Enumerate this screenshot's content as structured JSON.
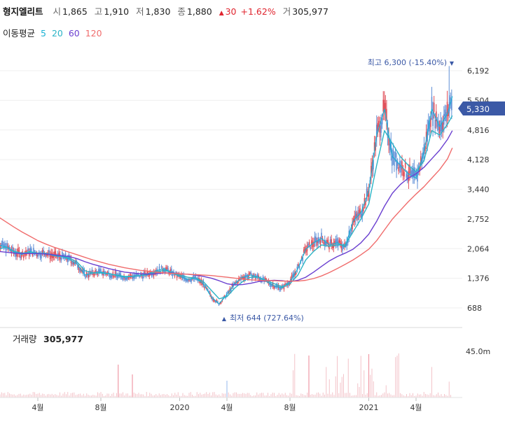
{
  "header": {
    "name": "형지엘리트",
    "open_label": "시",
    "open": "1,865",
    "high_label": "고",
    "high": "1,910",
    "low_label": "저",
    "low": "1,830",
    "close_label": "종",
    "close": "1,880",
    "change_arrow": "▲",
    "change": "30",
    "change_pct": "+1.62%",
    "volume_label": "거",
    "volume": "305,977"
  },
  "ma_legend": {
    "label": "이동평균",
    "items": [
      {
        "period": "5",
        "color": "#1ab2d4"
      },
      {
        "period": "20",
        "color": "#2bb4c6"
      },
      {
        "period": "60",
        "color": "#6a3fd0"
      },
      {
        "period": "120",
        "color": "#f06c6c"
      }
    ]
  },
  "price_chart": {
    "max_note": "최고 6,300 (-15.40%)",
    "max_marker": "▼",
    "min_note": "최저 644 (727.64%)",
    "min_marker": "▲",
    "current_price": "5,330",
    "current_price_color": "#3b59a6"
  },
  "volume_chart": {
    "label": "거래량",
    "value": "305,977",
    "axis_label": "45.0m"
  },
  "chart_data": {
    "type": "line",
    "ylabels": [
      "6,192",
      "5,504",
      "4,816",
      "4,128",
      "3,440",
      "2,752",
      "2,064",
      "1,376",
      "688"
    ],
    "yticks": [
      6192,
      5504,
      4816,
      4128,
      3440,
      2752,
      2064,
      1376,
      688
    ],
    "xlabels": [
      "4월",
      "8월",
      "2020",
      "4월",
      "8월",
      "2021",
      "4월"
    ],
    "xtick_months": [
      3,
      7,
      12,
      15,
      19,
      24,
      27
    ],
    "x_months": [
      0,
      0.5,
      1,
      1.5,
      2,
      2.5,
      3,
      3.5,
      4,
      4.5,
      5,
      5.5,
      6,
      6.5,
      7,
      7.5,
      8,
      8.5,
      9,
      9.5,
      10,
      10.5,
      11,
      11.5,
      12,
      12.5,
      13,
      13.5,
      14,
      14.5,
      15,
      15.5,
      16,
      16.5,
      17,
      17.5,
      18,
      18.5,
      19,
      19.5,
      20,
      20.5,
      21,
      21.5,
      22,
      22.5,
      23,
      23.5,
      24,
      24.5,
      25,
      25.5,
      26,
      26.5,
      27,
      27.5,
      28,
      28.5,
      29,
      29.3
    ],
    "series": [
      {
        "color": "#1ab2d4",
        "values": [
          2050,
          2150,
          2100,
          1980,
          1930,
          2000,
          1950,
          1960,
          1900,
          1880,
          1820,
          1700,
          1450,
          1500,
          1520,
          1480,
          1440,
          1400,
          1420,
          1440,
          1480,
          1550,
          1600,
          1500,
          1420,
          1350,
          1380,
          1250,
          950,
          780,
          1000,
          1250,
          1400,
          1450,
          1400,
          1300,
          1200,
          1150,
          1300,
          1600,
          2050,
          2200,
          2300,
          2150,
          2200,
          2100,
          2700,
          2900,
          3400,
          4700,
          5300,
          4200,
          4000,
          3800,
          3700,
          4300,
          5300,
          4900,
          5200,
          5600
        ]
      },
      {
        "color": "#2bb4c6",
        "values": [
          2000,
          2050,
          2100,
          2000,
          1960,
          1980,
          1960,
          1950,
          1920,
          1890,
          1850,
          1750,
          1550,
          1500,
          1500,
          1480,
          1450,
          1420,
          1420,
          1440,
          1460,
          1520,
          1560,
          1520,
          1450,
          1400,
          1380,
          1300,
          1100,
          900,
          950,
          1150,
          1300,
          1400,
          1400,
          1330,
          1250,
          1180,
          1250,
          1450,
          1800,
          2000,
          2150,
          2120,
          2150,
          2150,
          2450,
          2750,
          3100,
          4000,
          4800,
          4500,
          4200,
          4000,
          3850,
          4100,
          4800,
          4700,
          4950,
          5150
        ]
      },
      {
        "color": "#6a3fd0",
        "values": [
          2000,
          2000,
          1980,
          1960,
          1950,
          1950,
          1950,
          1940,
          1920,
          1900,
          1880,
          1830,
          1760,
          1700,
          1650,
          1600,
          1560,
          1520,
          1500,
          1480,
          1470,
          1480,
          1500,
          1500,
          1480,
          1470,
          1450,
          1420,
          1380,
          1320,
          1250,
          1220,
          1230,
          1260,
          1300,
          1320,
          1330,
          1320,
          1300,
          1330,
          1400,
          1520,
          1650,
          1780,
          1880,
          1960,
          2050,
          2200,
          2400,
          2700,
          3050,
          3350,
          3550,
          3700,
          3800,
          3950,
          4150,
          4350,
          4600,
          4800
        ]
      },
      {
        "color": "#f06c6c",
        "values": [
          2950,
          2800,
          2680,
          2560,
          2450,
          2350,
          2250,
          2170,
          2100,
          2040,
          1980,
          1920,
          1860,
          1800,
          1750,
          1700,
          1660,
          1620,
          1590,
          1560,
          1540,
          1520,
          1500,
          1490,
          1480,
          1470,
          1460,
          1450,
          1440,
          1420,
          1400,
          1380,
          1360,
          1340,
          1330,
          1320,
          1320,
          1310,
          1310,
          1310,
          1330,
          1370,
          1430,
          1510,
          1600,
          1700,
          1800,
          1920,
          2050,
          2250,
          2500,
          2750,
          2950,
          3150,
          3330,
          3500,
          3700,
          3900,
          4150,
          4400
        ]
      }
    ]
  }
}
